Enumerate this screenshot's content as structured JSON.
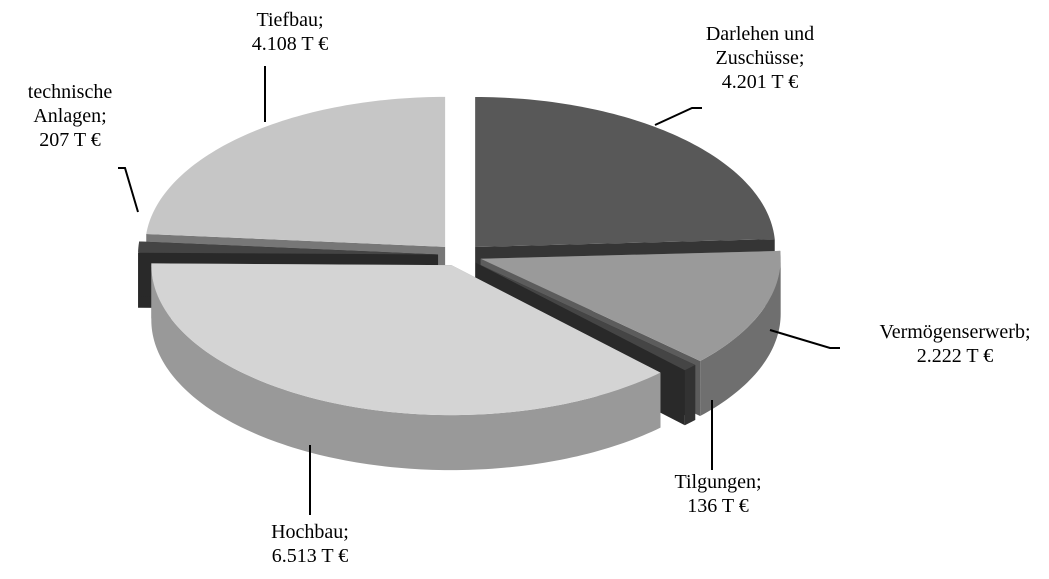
{
  "chart_data": {
    "type": "pie3d",
    "categories": [
      "Darlehen und Zuschüsse;",
      "Vermögenserwerb;",
      "Tilgungen;",
      "Hochbau;",
      "technische Anlagen;",
      "Tiefbau;"
    ],
    "values": [
      4201,
      2222,
      136,
      6513,
      207,
      4108
    ],
    "value_labels": [
      "4.201 T €",
      "2.222 T €",
      "136 T €",
      "6.513 T €",
      "207 T €",
      "4.108 T €"
    ],
    "colors": [
      "#585858",
      "#9a9a9a",
      "#454545",
      "#d4d4d4",
      "#444444",
      "#c6c6c6"
    ]
  }
}
